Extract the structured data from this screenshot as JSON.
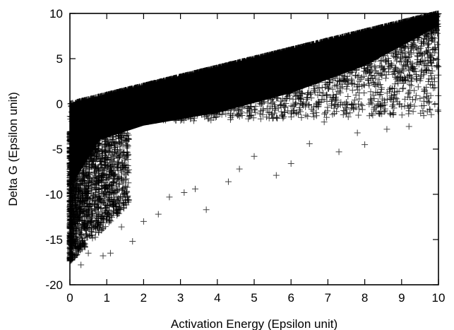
{
  "chart_data": {
    "type": "scatter",
    "xlabel": "Activation Energy (Epsilon unit)",
    "ylabel": "Delta G (Epsilon unit)",
    "xlim": [
      0,
      10
    ],
    "ylim": [
      -20,
      10
    ],
    "x_ticks": [
      0,
      1,
      2,
      3,
      4,
      5,
      6,
      7,
      8,
      9,
      10
    ],
    "y_ticks": [
      10,
      5,
      0,
      -5,
      -10,
      -15,
      -20
    ],
    "grid": false,
    "legend": "none",
    "marker": "plus",
    "marker_color": "#000000",
    "point_density": "dense",
    "upper_bound": {
      "description": "points lie on or below the line y = x",
      "x": [
        0,
        10
      ],
      "y": [
        0,
        10
      ]
    },
    "sparse_points": [
      {
        "x": 0.3,
        "y": -17.8
      },
      {
        "x": 0.5,
        "y": -16.5
      },
      {
        "x": 0.9,
        "y": -16.8
      },
      {
        "x": 1.1,
        "y": -16.5
      },
      {
        "x": 1.7,
        "y": -15.2
      },
      {
        "x": 0.7,
        "y": -14.2
      },
      {
        "x": 1.4,
        "y": -13.6
      },
      {
        "x": 2.0,
        "y": -13.0
      },
      {
        "x": 2.4,
        "y": -12.2
      },
      {
        "x": 3.7,
        "y": -11.7
      },
      {
        "x": 2.7,
        "y": -10.3
      },
      {
        "x": 3.1,
        "y": -9.8
      },
      {
        "x": 3.4,
        "y": -9.4
      },
      {
        "x": 4.3,
        "y": -8.6
      },
      {
        "x": 5.6,
        "y": -7.9
      },
      {
        "x": 4.6,
        "y": -7.2
      },
      {
        "x": 6.0,
        "y": -6.6
      },
      {
        "x": 5.0,
        "y": -5.8
      },
      {
        "x": 7.3,
        "y": -5.3
      },
      {
        "x": 6.5,
        "y": -4.4
      },
      {
        "x": 8.0,
        "y": -4.5
      },
      {
        "x": 7.8,
        "y": -3.2
      },
      {
        "x": 8.6,
        "y": -2.8
      },
      {
        "x": 9.2,
        "y": -2.5
      },
      {
        "x": 9.6,
        "y": -1.3
      },
      {
        "x": 6.9,
        "y": -2.0
      },
      {
        "x": 7.6,
        "y": -1.0
      },
      {
        "x": 8.3,
        "y": -0.8
      },
      {
        "x": 9.0,
        "y": -0.3
      },
      {
        "x": 9.5,
        "y": 0.6
      },
      {
        "x": 9.9,
        "y": 1.8
      },
      {
        "x": 5.8,
        "y": -0.2
      },
      {
        "x": 6.3,
        "y": 0.0
      },
      {
        "x": 7.1,
        "y": 0.0
      },
      {
        "x": 7.7,
        "y": 0.0
      },
      {
        "x": 8.2,
        "y": 0.0
      },
      {
        "x": 8.9,
        "y": 2.5
      },
      {
        "x": 9.3,
        "y": 4.0
      },
      {
        "x": 9.7,
        "y": 6.5
      },
      {
        "x": 7.9,
        "y": 5.0
      }
    ]
  }
}
